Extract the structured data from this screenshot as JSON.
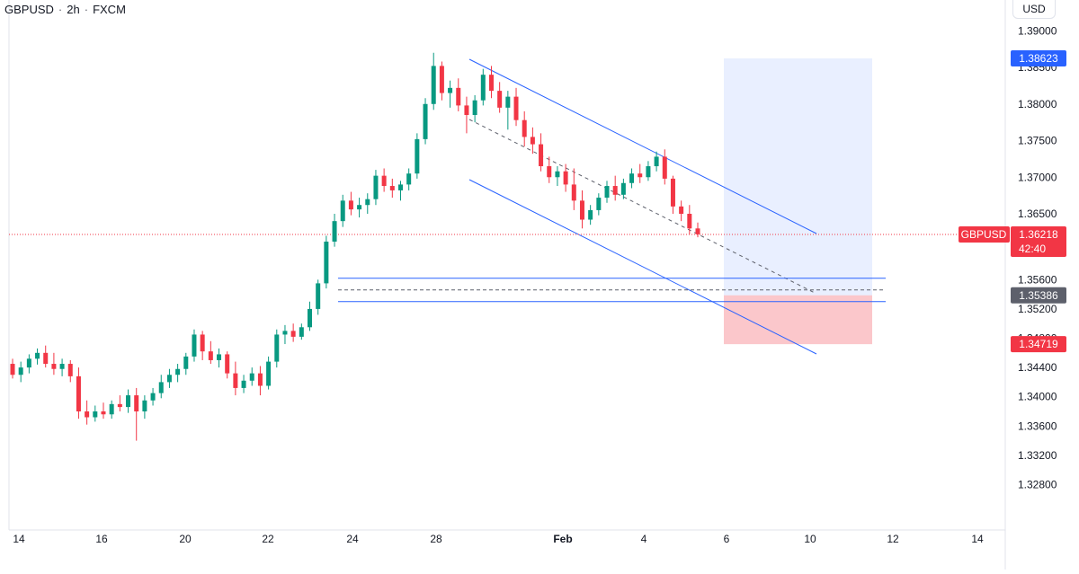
{
  "header": {
    "symbol": "GBPUSD",
    "interval": "2h",
    "source": "FXCM",
    "separator": "·",
    "currency": "USD"
  },
  "chart_data": {
    "type": "candlestick",
    "symbol": "GBPUSD",
    "interval": "2h",
    "y_axis": {
      "range": [
        1.3245,
        1.392
      ],
      "tick_labels": [
        "1.39000",
        "1.38500",
        "1.38000",
        "1.37500",
        "1.37000",
        "1.36500",
        "1.35600",
        "1.35200",
        "1.34800",
        "1.34400",
        "1.34000",
        "1.33600",
        "1.33200",
        "1.32800"
      ]
    },
    "x_axis": {
      "tick_labels": [
        "14",
        "16",
        "20",
        "22",
        "24",
        "28",
        "Feb",
        "4",
        "6",
        "10",
        "12",
        "14"
      ],
      "bold_label": "Feb"
    },
    "price_markers": {
      "last": {
        "label": "GBPUSD",
        "value": "1.36218",
        "countdown": "42:40",
        "color": "#f23645"
      },
      "target": {
        "value": "1.38623",
        "color": "#2962ff"
      },
      "entry": {
        "value": "1.35386",
        "color": "#5d606b"
      },
      "stop": {
        "value": "1.34719",
        "color": "#f23645"
      }
    },
    "position_tool": {
      "entry": 1.35386,
      "target": 1.38623,
      "stop": 1.34719
    },
    "horizontal_levels": [
      1.3562,
      1.353
    ],
    "dashed_level": 1.3546,
    "channel": {
      "upper": [
        [
          1.3866
        ],
        [
          1.3637
        ]
      ],
      "lower": [
        [
          1.3707
        ],
        [
          1.3468
        ]
      ]
    },
    "candles_ohlc": [
      [
        1.3445,
        1.3452,
        1.3425,
        1.343
      ],
      [
        1.343,
        1.3448,
        1.342,
        1.344
      ],
      [
        1.344,
        1.3458,
        1.3432,
        1.3452
      ],
      [
        1.3452,
        1.3466,
        1.3444,
        1.346
      ],
      [
        1.346,
        1.347,
        1.344,
        1.3445
      ],
      [
        1.3445,
        1.346,
        1.343,
        1.3438
      ],
      [
        1.3438,
        1.3452,
        1.3428,
        1.3445
      ],
      [
        1.3445,
        1.345,
        1.342,
        1.3428
      ],
      [
        1.3428,
        1.344,
        1.337,
        1.338
      ],
      [
        1.338,
        1.3395,
        1.3362,
        1.3372
      ],
      [
        1.3372,
        1.3388,
        1.3366,
        1.338
      ],
      [
        1.338,
        1.3392,
        1.337,
        1.3376
      ],
      [
        1.3376,
        1.3395,
        1.337,
        1.339
      ],
      [
        1.339,
        1.3402,
        1.338,
        1.3386
      ],
      [
        1.3386,
        1.341,
        1.3378,
        1.3402
      ],
      [
        1.3402,
        1.3412,
        1.334,
        1.338
      ],
      [
        1.338,
        1.3402,
        1.337,
        1.3395
      ],
      [
        1.3395,
        1.3412,
        1.3388,
        1.3405
      ],
      [
        1.3405,
        1.343,
        1.3398,
        1.342
      ],
      [
        1.342,
        1.3438,
        1.3412,
        1.343
      ],
      [
        1.343,
        1.3445,
        1.342,
        1.3438
      ],
      [
        1.3438,
        1.346,
        1.343,
        1.3455
      ],
      [
        1.3455,
        1.3492,
        1.3448,
        1.3485
      ],
      [
        1.3485,
        1.349,
        1.345,
        1.3462
      ],
      [
        1.3462,
        1.3476,
        1.3445,
        1.345
      ],
      [
        1.345,
        1.3466,
        1.344,
        1.3458
      ],
      [
        1.3458,
        1.3462,
        1.3425,
        1.3432
      ],
      [
        1.3432,
        1.3448,
        1.3402,
        1.3412
      ],
      [
        1.3412,
        1.343,
        1.3405,
        1.3422
      ],
      [
        1.3422,
        1.344,
        1.3415,
        1.3432
      ],
      [
        1.3432,
        1.3442,
        1.3402,
        1.3415
      ],
      [
        1.3415,
        1.3455,
        1.341,
        1.3448
      ],
      [
        1.3448,
        1.3492,
        1.344,
        1.3485
      ],
      [
        1.3485,
        1.3498,
        1.3472,
        1.349
      ],
      [
        1.349,
        1.35,
        1.3475,
        1.3482
      ],
      [
        1.3482,
        1.35,
        1.3478,
        1.3495
      ],
      [
        1.3495,
        1.353,
        1.349,
        1.352
      ],
      [
        1.352,
        1.356,
        1.3512,
        1.3555
      ],
      [
        1.3555,
        1.362,
        1.3548,
        1.3612
      ],
      [
        1.3612,
        1.365,
        1.3605,
        1.364
      ],
      [
        1.364,
        1.3676,
        1.3632,
        1.3668
      ],
      [
        1.3668,
        1.368,
        1.3648,
        1.3656
      ],
      [
        1.3656,
        1.3672,
        1.3645,
        1.3662
      ],
      [
        1.3662,
        1.3678,
        1.365,
        1.367
      ],
      [
        1.367,
        1.371,
        1.3662,
        1.3702
      ],
      [
        1.3702,
        1.3712,
        1.368,
        1.3688
      ],
      [
        1.3688,
        1.3698,
        1.3672,
        1.3682
      ],
      [
        1.3682,
        1.3695,
        1.3668,
        1.369
      ],
      [
        1.369,
        1.3712,
        1.3682,
        1.3705
      ],
      [
        1.3705,
        1.376,
        1.3698,
        1.3752
      ],
      [
        1.3752,
        1.3808,
        1.3745,
        1.38
      ],
      [
        1.38,
        1.387,
        1.3792,
        1.3852
      ],
      [
        1.3852,
        1.3858,
        1.3805,
        1.3815
      ],
      [
        1.3815,
        1.3832,
        1.3795,
        1.3822
      ],
      [
        1.3822,
        1.3835,
        1.379,
        1.3798
      ],
      [
        1.3798,
        1.381,
        1.376,
        1.3785
      ],
      [
        1.3785,
        1.3812,
        1.3775,
        1.3805
      ],
      [
        1.3805,
        1.3848,
        1.3798,
        1.384
      ],
      [
        1.384,
        1.3852,
        1.3808,
        1.3818
      ],
      [
        1.3818,
        1.383,
        1.3788,
        1.3795
      ],
      [
        1.3795,
        1.3818,
        1.3765,
        1.381
      ],
      [
        1.381,
        1.3822,
        1.377,
        1.3778
      ],
      [
        1.3778,
        1.379,
        1.3742,
        1.3755
      ],
      [
        1.3755,
        1.3768,
        1.3732,
        1.3745
      ],
      [
        1.3745,
        1.376,
        1.3708,
        1.3715
      ],
      [
        1.3715,
        1.3728,
        1.3692,
        1.37
      ],
      [
        1.37,
        1.3715,
        1.3688,
        1.3708
      ],
      [
        1.3708,
        1.3718,
        1.368,
        1.369
      ],
      [
        1.369,
        1.3712,
        1.3655,
        1.3668
      ],
      [
        1.3668,
        1.3682,
        1.363,
        1.3642
      ],
      [
        1.3642,
        1.3662,
        1.3635,
        1.3655
      ],
      [
        1.3655,
        1.3678,
        1.3648,
        1.3672
      ],
      [
        1.3672,
        1.3695,
        1.3665,
        1.3688
      ],
      [
        1.3688,
        1.3702,
        1.3668,
        1.3676
      ],
      [
        1.3676,
        1.3698,
        1.367,
        1.3692
      ],
      [
        1.3692,
        1.3712,
        1.3685,
        1.3705
      ],
      [
        1.3705,
        1.3718,
        1.3692,
        1.37
      ],
      [
        1.37,
        1.3722,
        1.3695,
        1.3715
      ],
      [
        1.3715,
        1.3735,
        1.3708,
        1.3728
      ],
      [
        1.3728,
        1.3738,
        1.369,
        1.3698
      ],
      [
        1.3698,
        1.3702,
        1.365,
        1.366
      ],
      [
        1.366,
        1.3668,
        1.364,
        1.365
      ],
      [
        1.365,
        1.3662,
        1.3622,
        1.363
      ],
      [
        1.363,
        1.3638,
        1.3618,
        1.3622
      ]
    ]
  }
}
